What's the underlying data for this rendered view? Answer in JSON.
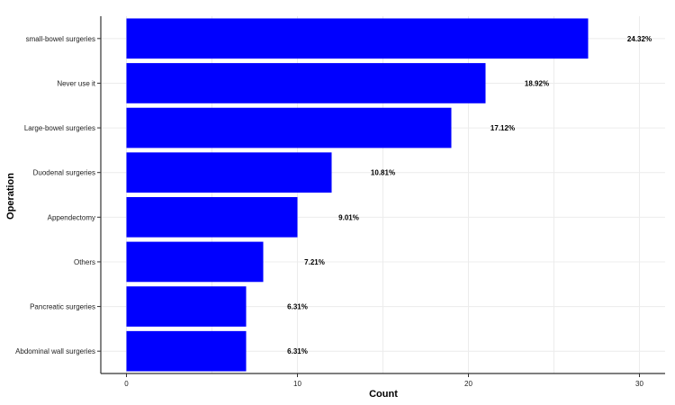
{
  "chart_data": {
    "type": "bar",
    "orientation": "horizontal",
    "xlabel": "Count",
    "ylabel": "Operation",
    "xlim": [
      -1.5,
      31.5
    ],
    "xticks": [
      0,
      10,
      20,
      30
    ],
    "grid": true,
    "bar_color": "#0000ff",
    "categories": [
      "small-bowel surgeries",
      "Never use it",
      "Large-bowel surgeries",
      "Duodenal surgeries",
      "Appendectomy",
      "Others",
      "Pancreatic surgeries",
      "Abdominal wall surgeries"
    ],
    "values": [
      27,
      21,
      19,
      12,
      10,
      8,
      7,
      7
    ],
    "data_labels": [
      "24.32%",
      "18.92%",
      "17.12%",
      "10.81%",
      "9.01%",
      "7.21%",
      "6.31%",
      "6.31%"
    ]
  }
}
